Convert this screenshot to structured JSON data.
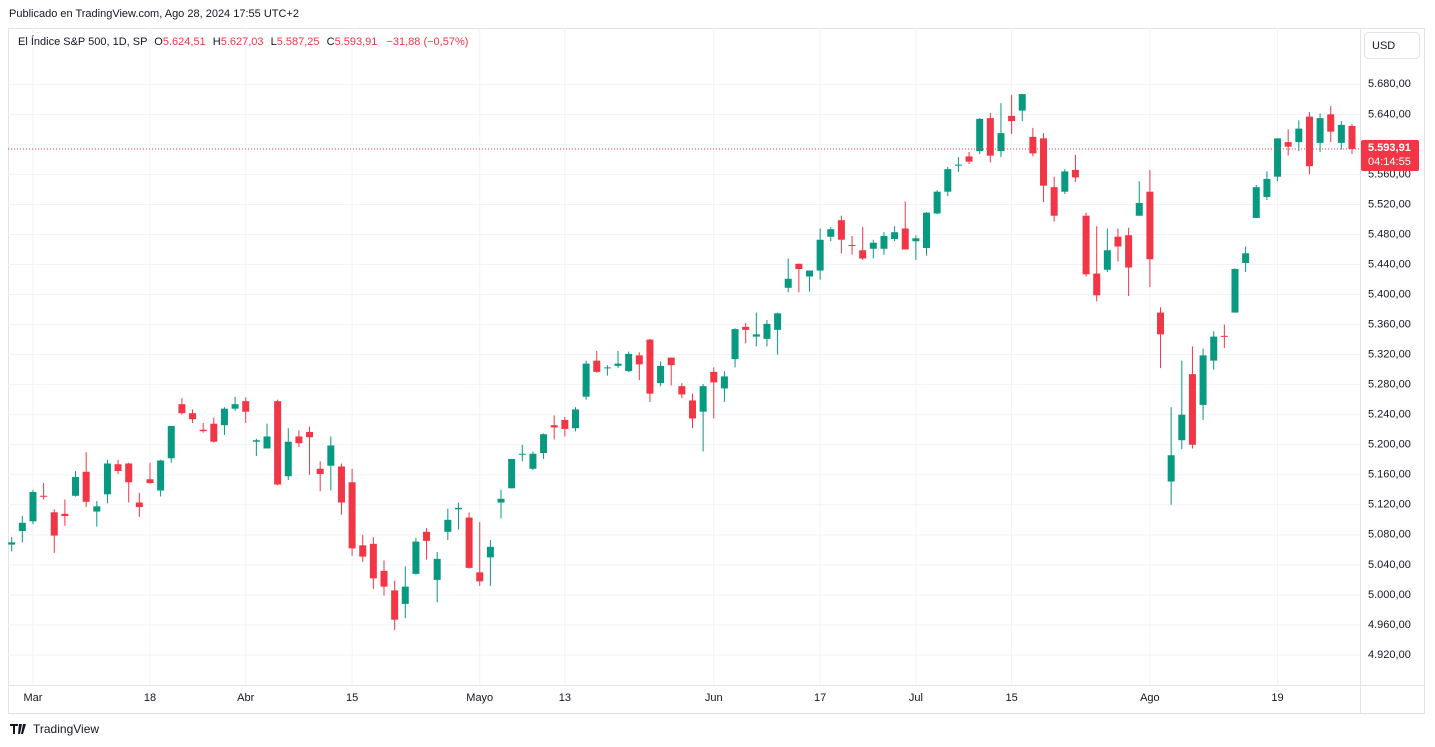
{
  "published": "Publicado en TradingView.com, Ago 28, 2024 17:55 UTC+2",
  "brand": "TradingView",
  "currency_button": "USD",
  "chart_data": {
    "type": "candlestick",
    "header": {
      "symbol": "El Índice S&P 500, 1D, SP",
      "o_label": "O",
      "o": "5.624,51",
      "h_label": "H",
      "h": "5.627,03",
      "l_label": "L",
      "l": "5.587,25",
      "c_label": "C",
      "c": "5.593,91",
      "change": "−31,88 (−0,57%)"
    },
    "up_color": "#089981",
    "down_color": "#f23645",
    "grid": true,
    "ylim": [
      4880,
      5755
    ],
    "yticks": [
      {
        "value": 4920,
        "label": "4.920,00"
      },
      {
        "value": 4960,
        "label": "4.960,00"
      },
      {
        "value": 5000,
        "label": "5.000,00"
      },
      {
        "value": 5040,
        "label": "5.040,00"
      },
      {
        "value": 5080,
        "label": "5.080,00"
      },
      {
        "value": 5120,
        "label": "5.120,00"
      },
      {
        "value": 5160,
        "label": "5.160,00"
      },
      {
        "value": 5200,
        "label": "5.200,00"
      },
      {
        "value": 5240,
        "label": "5.240,00"
      },
      {
        "value": 5280,
        "label": "5.280,00"
      },
      {
        "value": 5320,
        "label": "5.320,00"
      },
      {
        "value": 5360,
        "label": "5.360,00"
      },
      {
        "value": 5400,
        "label": "5.400,00"
      },
      {
        "value": 5440,
        "label": "5.440,00"
      },
      {
        "value": 5480,
        "label": "5.480,00"
      },
      {
        "value": 5520,
        "label": "5.520,00"
      },
      {
        "value": 5560,
        "label": "5.560,00"
      },
      {
        "value": 5600,
        "label": "5.600,00"
      },
      {
        "value": 5640,
        "label": "5.640,00"
      },
      {
        "value": 5680,
        "label": "5.680,00"
      }
    ],
    "last_price": {
      "value": 5593.91,
      "label": "5.593,91"
    },
    "countdown": "04:14:55",
    "categories": [
      null,
      null,
      "Mar",
      null,
      null,
      null,
      null,
      null,
      null,
      null,
      null,
      null,
      null,
      "18",
      null,
      null,
      null,
      null,
      null,
      null,
      null,
      null,
      "Abr",
      null,
      null,
      null,
      null,
      null,
      null,
      null,
      null,
      null,
      "15",
      null,
      null,
      null,
      null,
      null,
      null,
      null,
      null,
      null,
      null,
      null,
      "Mayo",
      null,
      null,
      null,
      null,
      null,
      null,
      null,
      "13",
      null,
      null,
      null,
      null,
      null,
      null,
      null,
      null,
      null,
      null,
      null,
      null,
      null,
      "Jun",
      null,
      null,
      null,
      null,
      null,
      null,
      null,
      null,
      null,
      "17",
      null,
      null,
      null,
      null,
      null,
      null,
      null,
      null,
      "Jul",
      null,
      null,
      null,
      null,
      null,
      null,
      null,
      null,
      "15",
      null,
      null,
      null,
      null,
      null,
      null,
      null,
      null,
      null,
      null,
      null,
      null,
      "Ago",
      null,
      null,
      null,
      null,
      null,
      null,
      null,
      null,
      null,
      null,
      null,
      "19",
      null,
      null,
      null,
      null,
      null,
      null,
      null
    ],
    "open": [
      5067,
      5085,
      5098,
      5132,
      5110,
      5108,
      5132,
      5164,
      5111,
      5134,
      5174,
      5175,
      5123,
      5154,
      5139,
      5182,
      5254,
      5242,
      5220,
      5228,
      5226,
      5248,
      5258,
      5204,
      5195,
      5258,
      5158,
      5211,
      5217,
      5168,
      5172,
      5171,
      5150,
      5066,
      5068,
      5032,
      5006,
      4988,
      5028,
      5084,
      5020,
      5084,
      5114,
      5103,
      5030,
      5050,
      5123,
      5142,
      5187,
      5168,
      5189,
      5226,
      5233,
      5222,
      5264,
      5312,
      5303,
      5305,
      5298,
      5319,
      5340,
      5282,
      5316,
      5278,
      5259,
      5244,
      5297,
      5275,
      5314,
      5357,
      5344,
      5341,
      5353,
      5409,
      5441,
      5424,
      5432,
      5477,
      5499,
      5466,
      5459,
      5461,
      5461,
      5474,
      5488,
      5471,
      5462,
      5508,
      5537,
      5572,
      5584,
      5591,
      5635,
      5591,
      5638,
      5645,
      5610,
      5608,
      5543,
      5537,
      5566,
      5505,
      5428,
      5433,
      5477,
      5479,
      5505,
      5537,
      5376,
      5151,
      5206,
      5294,
      5253,
      5312,
      5345,
      5376,
      5442,
      5502,
      5530,
      5557,
      5603,
      5603,
      5637,
      5602,
      5640,
      5602,
      5624.51
    ],
    "high": [
      5077,
      5105,
      5140,
      5149,
      5114,
      5127,
      5165,
      5190,
      5125,
      5180,
      5180,
      5176,
      5136,
      5176,
      5180,
      5225,
      5262,
      5247,
      5229,
      5236,
      5250,
      5264,
      5263,
      5208,
      5228,
      5260,
      5222,
      5219,
      5224,
      5178,
      5211,
      5175,
      5168,
      5080,
      5077,
      5046,
      5019,
      5038,
      5076,
      5089,
      5057,
      5115,
      5123,
      5110,
      5097,
      5073,
      5140,
      5181,
      5200,
      5191,
      5215,
      5239,
      5237,
      5250,
      5312,
      5325,
      5306,
      5325,
      5324,
      5323,
      5341,
      5311,
      5316,
      5282,
      5268,
      5281,
      5303,
      5298,
      5355,
      5362,
      5376,
      5366,
      5376,
      5448,
      5441,
      5432,
      5488,
      5490,
      5505,
      5478,
      5490,
      5473,
      5483,
      5491,
      5524,
      5479,
      5510,
      5539,
      5570,
      5583,
      5590,
      5635,
      5642,
      5655,
      5666,
      5667,
      5622,
      5615,
      5557,
      5567,
      5586,
      5509,
      5491,
      5488,
      5488,
      5489,
      5551,
      5566,
      5383,
      5250,
      5312,
      5331,
      5328,
      5351,
      5360,
      5435,
      5464,
      5546,
      5564,
      5608,
      5620,
      5632,
      5643,
      5641,
      5651,
      5631,
      5627.03
    ],
    "low": [
      5058,
      5070,
      5094,
      5127,
      5056,
      5092,
      5131,
      5117,
      5091,
      5122,
      5161,
      5123,
      5104,
      5148,
      5131,
      5176,
      5240,
      5229,
      5216,
      5203,
      5213,
      5245,
      5229,
      5185,
      5195,
      5146,
      5153,
      5197,
      5160,
      5138,
      5139,
      5107,
      5052,
      5044,
      5008,
      4999,
      4953,
      4969,
      5027,
      5047,
      4990,
      5073,
      5087,
      5035,
      5012,
      5012,
      5102,
      5142,
      5178,
      5166,
      5181,
      5207,
      5211,
      5218,
      5260,
      5296,
      5292,
      5302,
      5297,
      5286,
      5257,
      5278,
      5279,
      5262,
      5222,
      5191,
      5235,
      5257,
      5303,
      5335,
      5331,
      5331,
      5320,
      5403,
      5403,
      5404,
      5420,
      5471,
      5455,
      5453,
      5446,
      5448,
      5453,
      5471,
      5460,
      5446,
      5452,
      5507,
      5531,
      5563,
      5574,
      5587,
      5576,
      5583,
      5614,
      5631,
      5584,
      5523,
      5497,
      5534,
      5550,
      5424,
      5391,
      5430,
      5444,
      5398,
      5505,
      5410,
      5302,
      5120,
      5194,
      5195,
      5233,
      5300,
      5329,
      5376,
      5430,
      5502,
      5526,
      5551,
      5585,
      5591,
      5560,
      5590,
      5603,
      5593,
      5587.25
    ],
    "close": [
      5070,
      5096,
      5137,
      5131,
      5079,
      5105,
      5157,
      5124,
      5118,
      5175,
      5165,
      5150,
      5117,
      5149,
      5179,
      5225,
      5242,
      5234,
      5218,
      5204,
      5248,
      5254,
      5244,
      5206,
      5211,
      5147,
      5204,
      5202,
      5210,
      5161,
      5199,
      5123,
      5062,
      5051,
      5022,
      5011,
      4967,
      5011,
      5071,
      5072,
      5048,
      5100,
      5116,
      5036,
      5018,
      5064,
      5128,
      5181,
      5188,
      5188,
      5214,
      5223,
      5221,
      5247,
      5308,
      5297,
      5303,
      5308,
      5321,
      5307,
      5268,
      5305,
      5306,
      5267,
      5235,
      5278,
      5283,
      5291,
      5354,
      5353,
      5347,
      5361,
      5375,
      5421,
      5434,
      5432,
      5473,
      5487,
      5473,
      5465,
      5448,
      5469,
      5478,
      5483,
      5460,
      5475,
      5509,
      5537,
      5567,
      5573,
      5577,
      5634,
      5585,
      5615,
      5631,
      5667,
      5588,
      5545,
      5505,
      5564,
      5556,
      5427,
      5399,
      5459,
      5464,
      5436,
      5522,
      5447,
      5347,
      5186,
      5240,
      5200,
      5319,
      5344,
      5344,
      5434,
      5455,
      5543,
      5554,
      5608,
      5597,
      5621,
      5571,
      5635,
      5617,
      5626,
      5593.91
    ]
  }
}
